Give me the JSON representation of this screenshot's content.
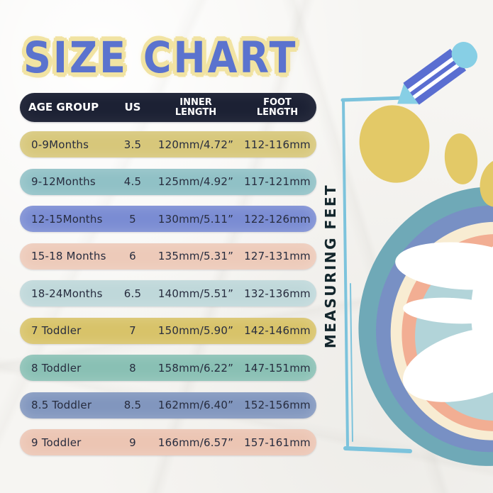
{
  "title": "SIZE CHART",
  "side_label": "MEASURING FEET",
  "table": {
    "headers": [
      {
        "line1": "AGE GROUP",
        "line2": ""
      },
      {
        "line1": "US",
        "line2": ""
      },
      {
        "line1": "INNER",
        "line2": "LENGTH"
      },
      {
        "line1": "FOOT",
        "line2": "LENGTH"
      }
    ],
    "header_bg": "#1c2134",
    "header_text_color": "#ffffff",
    "rows": [
      {
        "age": "0-9Months",
        "us": "3.5",
        "inner": "120mm/4.72”",
        "foot": "112-116mm",
        "color": "#d7c77a"
      },
      {
        "age": "9-12Months",
        "us": "4.5",
        "inner": "125mm/4.92”",
        "foot": "117-121mm",
        "color": "#90c1c6"
      },
      {
        "age": "12-15Months",
        "us": "5",
        "inner": "130mm/5.11”",
        "foot": "122-126mm",
        "color": "#7a8cd3"
      },
      {
        "age": "15-18 Months",
        "us": "6",
        "inner": "135mm/5.31”",
        "foot": "127-131mm",
        "color": "#edcab9"
      },
      {
        "age": "18-24Months",
        "us": "6.5",
        "inner": "140mm/5.51”",
        "foot": "132-136mm",
        "color": "#bfd8da"
      },
      {
        "age": "7 Toddler",
        "us": "7",
        "inner": "150mm/5.90”",
        "foot": "142-146mm",
        "color": "#d8c369"
      },
      {
        "age": "8 Toddler",
        "us": "8",
        "inner": "158mm/6.22”",
        "foot": "147-151mm",
        "color": "#89c0b4"
      },
      {
        "age": "8.5 Toddler",
        "us": "8.5",
        "inner": "162mm/6.40”",
        "foot": "152-156mm",
        "color": "#8196be"
      },
      {
        "age": "9 Toddler",
        "us": "9",
        "inner": "166mm/6.57”",
        "foot": "157-161mm",
        "color": "#ecc5b3"
      }
    ]
  },
  "colors": {
    "title_text": "#5b73ce",
    "title_glow": "#f1e3a2",
    "row_text": "#272c3e",
    "measuring_text": "#13262c",
    "paper": "#f6f5f2"
  },
  "illustration": {
    "pencil_body_color": "#5a6ed1",
    "pencil_stripe_color": "#ffffff",
    "pencil_tip_color": "#87cfe5",
    "bracket_color": "#7cc3dc",
    "toe_color": "#e3c967",
    "ring_colors": {
      "outer_teal": "#6fa9b7",
      "slate_blue": "#7890c4",
      "cream": "#f8ecd2",
      "salmon": "#f2ae93",
      "light_blue": "#b2d4d9",
      "center_white": "#ffffff"
    }
  }
}
